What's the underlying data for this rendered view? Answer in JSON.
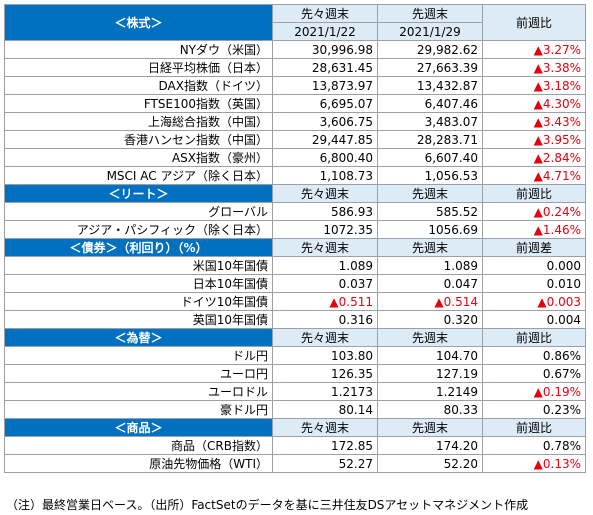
{
  "header": {
    "section": "＜株式＞",
    "col1_top": "先々週末",
    "col1_date": "2021/1/22",
    "col2_top": "先週末",
    "col2_date": "2021/1/29",
    "col3": "前週比"
  },
  "equities": [
    {
      "name": "NYダウ（米国）",
      "v1": "30,996.98",
      "v2": "29,982.62",
      "chg": "▲3.27%",
      "neg": true
    },
    {
      "name": "日経平均株価（日本）",
      "v1": "28,631.45",
      "v2": "27,663.39",
      "chg": "▲3.38%",
      "neg": true
    },
    {
      "name": "DAX指数（ドイツ）",
      "v1": "13,873.97",
      "v2": "13,432.87",
      "chg": "▲3.18%",
      "neg": true
    },
    {
      "name": "FTSE100指数（英国）",
      "v1": "6,695.07",
      "v2": "6,407.46",
      "chg": "▲4.30%",
      "neg": true
    },
    {
      "name": "上海総合指数（中国）",
      "v1": "3,606.75",
      "v2": "3,483.07",
      "chg": "▲3.43%",
      "neg": true
    },
    {
      "name": "香港ハンセン指数（中国）",
      "v1": "29,447.85",
      "v2": "28,283.71",
      "chg": "▲3.95%",
      "neg": true
    },
    {
      "name": "ASX指数（豪州）",
      "v1": "6,800.40",
      "v2": "6,607.40",
      "chg": "▲2.84%",
      "neg": true
    },
    {
      "name": "MSCI AC アジア（除く日本）",
      "v1": "1,108.73",
      "v2": "1,056.53",
      "chg": "▲4.71%",
      "neg": true
    }
  ],
  "reit": {
    "section": "＜リート＞",
    "col1": "先々週末",
    "col2": "先週末",
    "col3": "前週比",
    "rows": [
      {
        "name": "グローバル",
        "v1": "586.93",
        "v2": "585.52",
        "chg": "▲0.24%",
        "neg": true
      },
      {
        "name": "アジア・パシフィック（除く日本）",
        "v1": "1072.35",
        "v2": "1056.69",
        "chg": "▲1.46%",
        "neg": true
      }
    ]
  },
  "bonds": {
    "section": "＜債券＞（利回り）（%）",
    "col1": "先々週末",
    "col2": "先週末",
    "col3": "前週差",
    "rows": [
      {
        "name": "米国10年国債",
        "v1": "1.089",
        "v1neg": false,
        "v2": "1.089",
        "v2neg": false,
        "chg": "0.000",
        "neg": false
      },
      {
        "name": "日本10年国債",
        "v1": "0.037",
        "v1neg": false,
        "v2": "0.047",
        "v2neg": false,
        "chg": "0.010",
        "neg": false
      },
      {
        "name": "ドイツ10年国債",
        "v1": "▲0.511",
        "v1neg": true,
        "v2": "▲0.514",
        "v2neg": true,
        "chg": "▲0.003",
        "neg": true
      },
      {
        "name": "英国10年国債",
        "v1": "0.316",
        "v1neg": false,
        "v2": "0.320",
        "v2neg": false,
        "chg": "0.004",
        "neg": false
      }
    ]
  },
  "fx": {
    "section": "＜為替＞",
    "col1": "先々週末",
    "col2": "先週末",
    "col3": "前週比",
    "rows": [
      {
        "name": "ドル円",
        "v1": "103.80",
        "v2": "104.70",
        "chg": "0.86%",
        "neg": false
      },
      {
        "name": "ユーロ円",
        "v1": "126.35",
        "v2": "127.19",
        "chg": "0.67%",
        "neg": false
      },
      {
        "name": "ユーロドル",
        "v1": "1.2173",
        "v2": "1.2149",
        "chg": "▲0.19%",
        "neg": true
      },
      {
        "name": "豪ドル円",
        "v1": "80.14",
        "v2": "80.33",
        "chg": "0.23%",
        "neg": false
      }
    ]
  },
  "commodities": {
    "section": "＜商品＞",
    "col1": "先々週末",
    "col2": "先週末",
    "col3": "前週比",
    "rows": [
      {
        "name": "商品（CRB指数）",
        "v1": "172.85",
        "v2": "174.20",
        "chg": "0.78%",
        "neg": false
      },
      {
        "name": "原油先物価格（WTI）",
        "v1": "52.27",
        "v2": "52.20",
        "chg": "▲0.13%",
        "neg": true
      }
    ]
  },
  "colors": {
    "section_bg": "#0070c0",
    "header_bg": "#ddebf7",
    "negative": "#e8000b"
  },
  "footnote": "（注）最終営業日ベース。（出所）FactSetのデータを基に三井住友DSアセットマネジメント作成"
}
